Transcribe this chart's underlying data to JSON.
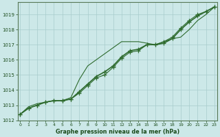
{
  "x": [
    0,
    1,
    2,
    3,
    4,
    5,
    6,
    7,
    8,
    9,
    10,
    11,
    12,
    13,
    14,
    15,
    16,
    17,
    18,
    19,
    20,
    21,
    22,
    23
  ],
  "series1": [
    1012.4,
    1012.8,
    1013.0,
    1013.2,
    1013.3,
    1013.3,
    1013.4,
    1013.8,
    1014.3,
    1014.8,
    1015.0,
    1015.5,
    1016.1,
    1016.5,
    1016.6,
    1017.0,
    1017.0,
    1017.2,
    1017.5,
    1018.1,
    1018.6,
    1019.0,
    1019.2,
    1019.5
  ],
  "series2": [
    1012.4,
    1012.8,
    1013.0,
    1013.2,
    1013.3,
    1013.3,
    1013.4,
    1013.9,
    1014.4,
    1014.9,
    1015.2,
    1015.6,
    1016.2,
    1016.6,
    1016.7,
    1017.0,
    1017.0,
    1017.1,
    1017.4,
    1018.0,
    1018.5,
    1018.9,
    1019.2,
    1019.5
  ],
  "series3": [
    1012.4,
    1012.9,
    1013.1,
    1013.2,
    1013.3,
    1013.3,
    1013.5,
    1014.7,
    1015.6,
    1016.0,
    1016.4,
    1016.8,
    1017.2,
    1017.2,
    1017.2,
    1017.1,
    1017.0,
    1017.2,
    1017.4,
    1017.5,
    1018.0,
    1018.6,
    1019.0,
    1019.5
  ],
  "line_color": "#2d6a2d",
  "bg_color": "#cce8e8",
  "grid_color": "#a8cccc",
  "title": "Graphe pression niveau de la mer (hPa)",
  "text_color": "#1a4a1a",
  "ylim": [
    1012,
    1019.8
  ],
  "yticks": [
    1012,
    1013,
    1014,
    1015,
    1016,
    1017,
    1018,
    1019
  ],
  "xticks": [
    0,
    1,
    2,
    3,
    4,
    5,
    6,
    7,
    8,
    9,
    10,
    11,
    12,
    13,
    14,
    15,
    16,
    17,
    18,
    19,
    20,
    21,
    22,
    23
  ],
  "markersize": 4,
  "lw_thin": 0.8,
  "lw_thick": 1.2
}
